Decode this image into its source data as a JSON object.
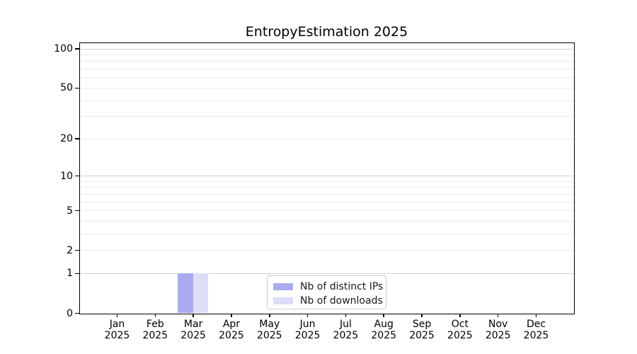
{
  "chart_data": {
    "type": "bar",
    "title": "EntropyEstimation 2025",
    "year_label": "2025",
    "categories": [
      "Jan",
      "Feb",
      "Mar",
      "Apr",
      "May",
      "Jun",
      "Jul",
      "Aug",
      "Sep",
      "Oct",
      "Nov",
      "Dec"
    ],
    "series": [
      {
        "name": "Nb of distinct IPs",
        "color": "#aaaaf3",
        "values": [
          0,
          0,
          1,
          0,
          0,
          0,
          0,
          0,
          0,
          0,
          0,
          0
        ]
      },
      {
        "name": "Nb of downloads",
        "color": "#ddddf8",
        "values": [
          0,
          0,
          1,
          0,
          0,
          0,
          0,
          0,
          0,
          0,
          0,
          0
        ]
      }
    ],
    "yscale": "log1p",
    "ylim": [
      0,
      110
    ],
    "y_tick_values": [
      0,
      1,
      2,
      5,
      10,
      20,
      50,
      100
    ],
    "y_tick_labels": [
      "0",
      "1",
      "2",
      "5",
      "10",
      "20",
      "50",
      "100"
    ],
    "y_major_gridline_values": [
      1,
      10,
      100
    ],
    "y_minor_gridline_values": [
      2,
      3,
      4,
      5,
      6,
      7,
      8,
      9,
      20,
      30,
      40,
      50,
      60,
      70,
      80,
      90
    ],
    "grid": "horizontal",
    "legend_position": "lower-center-inside",
    "colors": {
      "spine": "#000000",
      "major_grid": "#d2d2d2",
      "minor_grid": "#ececec",
      "background": "#ffffff"
    }
  }
}
